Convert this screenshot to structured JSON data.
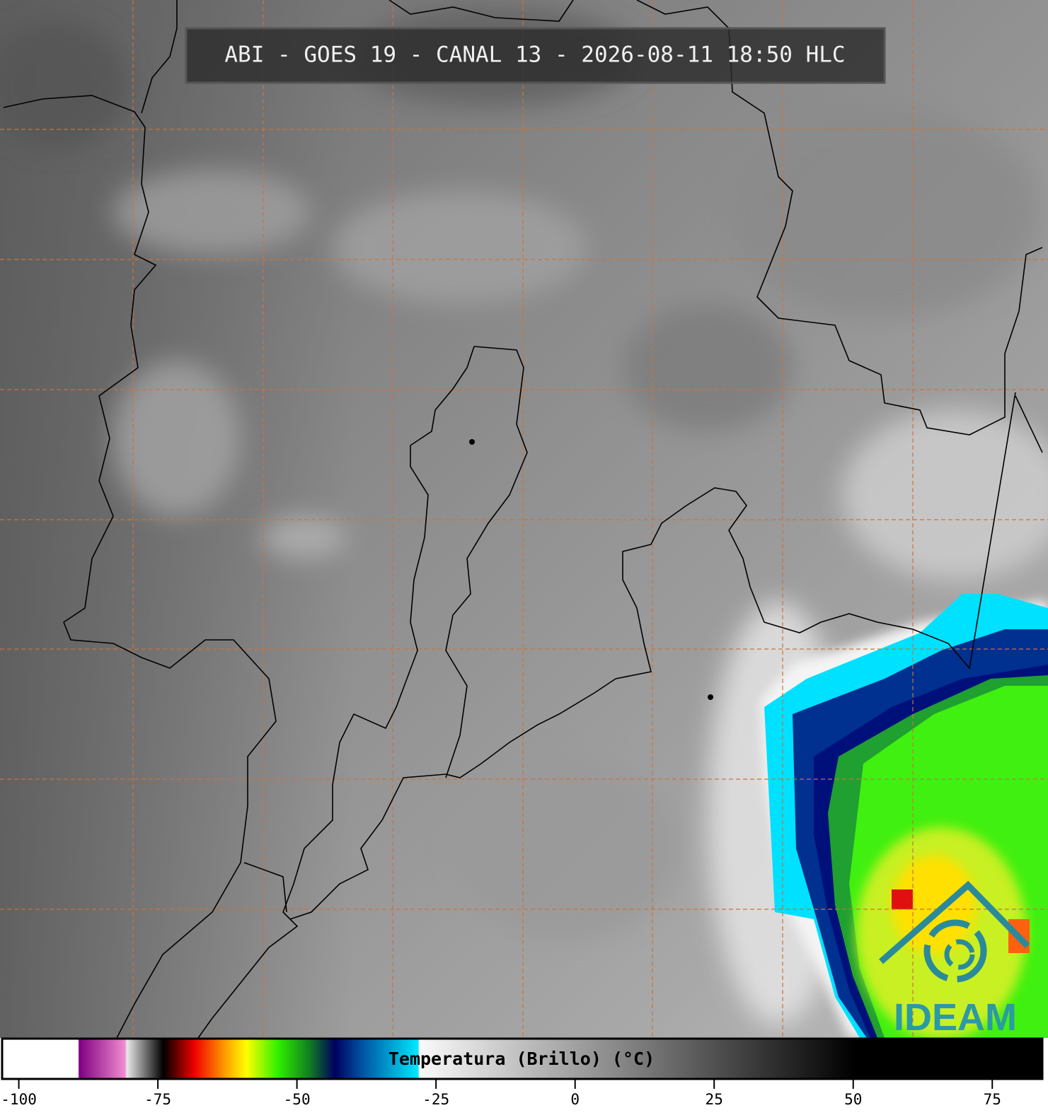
{
  "header": {
    "title": "ABI - GOES 19 - CANAL 13 - 2026-08-11 18:50 HLC"
  },
  "colorbar": {
    "label": "Temperatura (Brillo) (°C)",
    "range": [
      -103,
      84
    ],
    "ticks": [
      -100,
      -75,
      -50,
      -25,
      0,
      25,
      50,
      75
    ]
  },
  "logo": {
    "text": "IDEAM"
  }
}
